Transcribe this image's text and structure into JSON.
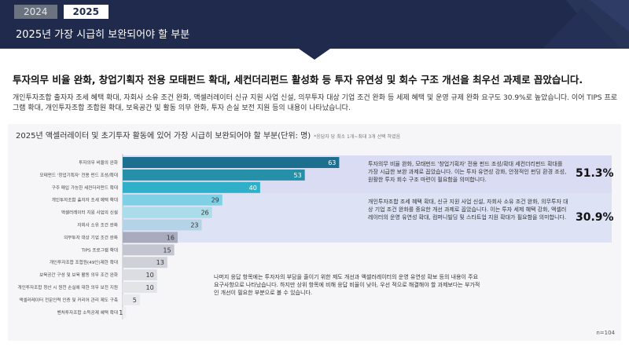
{
  "header": {
    "tabs": [
      {
        "label": "2024",
        "active": false
      },
      {
        "label": "2025",
        "active": true
      }
    ],
    "title": "2025년 가장 시급히 보완되어야 할 부분"
  },
  "headline": "투자의무 비율 완화, 창업기획자 전용 모태펀드 확대, 세컨더리펀드 활성화 등 투자 유연성 및 회수 구조 개선을 최우선 과제로 꼽았습니다.",
  "description": "개인투자조합 출자자 조세 혜택 확대, 자회사 소유 조건 완화, 액셀러레이터 신규 지원 사업 신설, 의무투자 대상 기업 조건 완화 등 세제 혜택 및 운영 규제 완화 요구도 30.9%로 높았습니다. 이어 TIPS 프로그램 확대, 개인투자조합 조합원 확대, 보육공간 및 활동 의무 완화, 투자 손실 보전 지원 등의 내용이 나타났습니다.",
  "chart_header": {
    "title": "2025년 액셀러레이터 및 초기투자 활동에 있어 가장 시급히 보완되어야 할 부분(단위: 명)",
    "note": "*응답자 당 최소 1개~최대 3개 선택 하였음",
    "n_label": "n=104"
  },
  "chart_data": {
    "type": "bar",
    "orientation": "horizontal",
    "unit": "명",
    "categories": [
      "투자의무 비율의 완화",
      "모태펀드 '창업기획자' 전용 펀드 조성/확대",
      "구주 매입 가능한 세컨더리펀드 확대",
      "개인투자조합 출자자 조세 혜택 확대",
      "액셀러레이터 지원 사업의 신설",
      "자회사 소유 조건 완화",
      "의무투자 대상 기업 조건 완화",
      "TIPS 프로그램 확대",
      "개인투자조합 조합원(49인)제한 확대",
      "보육공간 구성 및 보육 활동 의무 조건 완화",
      "개인투자조합 청산 시 원천 손실에 대한 의무 보전 지원",
      "액셀러레이터 전문인력 인증 및 커리어 관리 제도 구축",
      "벤처투자조합 소득공제 혜택 확대"
    ],
    "values": [
      63,
      53,
      40,
      29,
      26,
      23,
      16,
      15,
      13,
      10,
      10,
      5,
      1
    ],
    "colors": [
      "#1c6f8f",
      "#2590a8",
      "#2fb0c8",
      "#7fd0e4",
      "#aadcea",
      "#b5d3e6",
      "#a7abbd",
      "#c3c5d0",
      "#cfd1d8",
      "#dcdde2",
      "#e3e4e8",
      "#e8e9ec",
      "#eeeef0"
    ],
    "xlim": [
      0,
      70
    ],
    "grid": false,
    "groups": [
      {
        "range": [
          0,
          2
        ],
        "percent": "51.3%",
        "text": "투자의무 비율 완화, 모태펀드 '창업기획자' 전용 펀드 조성/확대 세컨더리펀드 확대를 가장 시급한 보완 과제로 꼽았습니다. 이는 투자 유연성 강화, 안정적인 펀딩 환경 조성, 원활한 투자 회수 구조 마련이 필요함을 의미합니다."
      },
      {
        "range": [
          3,
          6
        ],
        "percent": "30.9%",
        "text": "개인투자조합 조세 혜택 확대, 신규 지원 사업 신설, 자회사 소유 조건 완화, 의무투자 대상 기업 조건 완화를 중요한 개선 과제로 꼽았습니다. 이는 투자 세제 혜택 강화, 액셀러레이터의 운영 유연성 확대, 컴퍼니빌딩 및 스타트업 지원 확대가 필요함을 의미합니다."
      }
    ],
    "note": "나머지 응답 항목에는 투자자의 부담을 줄이기 위한 제도 개선과 액셀러레이터의 운영 유연성 확보 등의 내용이 주요 요구사항으로 나타났습니다. 하지만 상위 항목에 비해 응답 비율이 낮아, 우선 적으로 해결해야 할 과제보다는 부가적인 개선이 필요한 부분으로 볼 수 있습니다."
  }
}
